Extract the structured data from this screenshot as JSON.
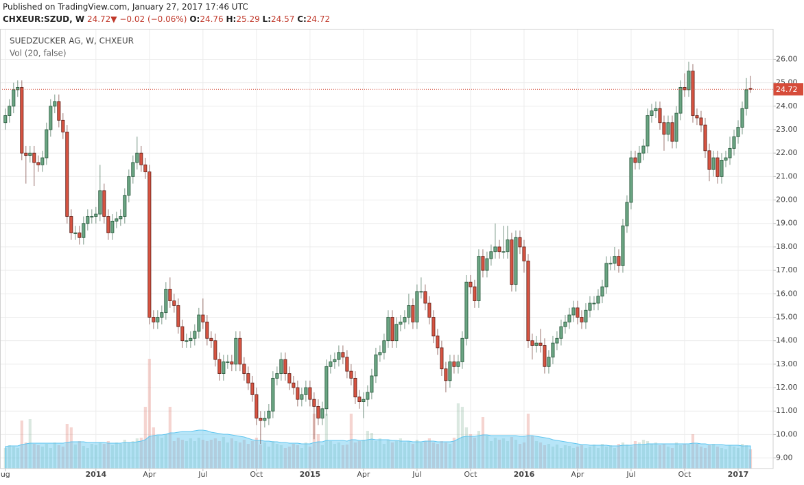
{
  "header": {
    "published": "Published on TradingView.com, January 27, 2017 17:46 UTC",
    "symbol": "CHXEUR:SZUD, W",
    "last": "24.72",
    "arrow": "▼",
    "change": "−0.02 (−0.06%)",
    "ohlc": [
      {
        "label": "O:",
        "value": "24.76"
      },
      {
        "label": "H:",
        "value": "25.29"
      },
      {
        "label": "L:",
        "value": "24.57"
      },
      {
        "label": "C:",
        "value": "24.72"
      }
    ]
  },
  "chart_data": {
    "type": "candlestick",
    "title": "SUEDZUCKER AG, W, CHXEUR",
    "volume_label": "Vol (20, false)",
    "up_color": "#6ba583",
    "up_border": "#225437",
    "down_color": "#d75442",
    "down_border": "#5b1a13",
    "volume_ma_color": "#5fc5ef",
    "grid": true,
    "x": [
      0,
      1,
      2,
      3,
      4,
      5,
      6,
      7,
      8,
      9,
      10,
      11,
      12,
      13,
      14,
      15,
      16,
      17,
      18,
      19,
      20,
      21,
      22,
      23,
      24,
      25,
      26,
      27,
      28,
      29,
      30,
      31,
      32,
      33,
      34,
      35,
      36,
      37,
      38,
      39,
      40,
      41,
      42,
      43,
      44,
      45,
      46,
      47,
      48,
      49,
      50,
      51,
      52,
      53,
      54,
      55,
      56,
      57,
      58,
      59,
      60,
      61,
      62,
      63,
      64,
      65,
      66,
      67,
      68,
      69,
      70,
      71,
      72,
      73,
      74,
      75,
      76,
      77,
      78,
      79,
      80,
      81,
      82,
      83,
      84,
      85,
      86,
      87,
      88,
      89,
      90,
      91,
      92,
      93,
      94,
      95,
      96,
      97,
      98,
      99,
      100,
      101,
      102,
      103,
      104,
      105,
      106,
      107,
      108,
      109,
      110,
      111,
      112,
      113,
      114,
      115,
      116,
      117,
      118,
      119,
      120,
      121,
      122,
      123,
      124,
      125,
      126,
      127,
      128,
      129,
      130,
      131,
      132,
      133,
      134,
      135,
      136,
      137,
      138,
      139,
      140,
      141,
      142,
      143,
      144,
      145,
      146,
      147,
      148,
      149,
      150,
      151,
      152,
      153,
      154,
      155,
      156,
      157,
      158,
      159,
      160,
      161,
      162,
      163,
      164,
      165,
      166,
      167,
      168,
      169,
      170,
      171,
      172,
      173,
      174,
      175,
      176,
      177,
      178,
      179,
      180,
      181
    ],
    "open": [
      23.3,
      23.6,
      24.0,
      24.7,
      24.8,
      22.0,
      21.9,
      22.0,
      21.6,
      21.5,
      21.8,
      23.0,
      24.0,
      24.2,
      23.4,
      22.9,
      19.3,
      18.6,
      18.6,
      18.4,
      19.0,
      19.3,
      19.3,
      19.4,
      20.4,
      19.3,
      18.6,
      19.1,
      19.2,
      19.3,
      20.2,
      21.0,
      21.6,
      22.0,
      21.5,
      21.2,
      15.0,
      14.8,
      15.0,
      15.2,
      16.2,
      15.7,
      15.5,
      14.6,
      14.0,
      14.0,
      14.1,
      14.4,
      15.1,
      14.8,
      14.1,
      14.0,
      13.2,
      12.6,
      13.1,
      13.1,
      13.0,
      14.1,
      13.0,
      12.6,
      12.2,
      11.7,
      10.7,
      10.6,
      10.7,
      11.0,
      12.4,
      12.6,
      13.2,
      12.6,
      12.2,
      12.0,
      11.5,
      11.7,
      12.0,
      11.5,
      11.2,
      10.7,
      11.1,
      12.9,
      13.1,
      13.2,
      13.5,
      13.3,
      12.7,
      12.4,
      11.6,
      11.4,
      11.5,
      11.8,
      12.5,
      13.4,
      13.5,
      14.0,
      15.0,
      14.0,
      14.7,
      14.8,
      15.0,
      15.5,
      14.8,
      16.1,
      16.1,
      15.6,
      15.0,
      14.2,
      13.7,
      12.8,
      12.3,
      13.1,
      12.9,
      13.1,
      14.1,
      16.5,
      16.3,
      15.7,
      17.6,
      17.0,
      17.5,
      17.8,
      18.0,
      17.8,
      17.8,
      18.3,
      16.4,
      18.4,
      18.0,
      17.4,
      14.0,
      13.8,
      13.9,
      13.8,
      12.9,
      13.3,
      13.9,
      14.1,
      14.6,
      14.8,
      15.1,
      15.4,
      15.0,
      14.8,
      15.3,
      15.6,
      15.6,
      15.9,
      16.3,
      17.3,
      17.3,
      17.6,
      17.2,
      18.9,
      19.9,
      21.8,
      21.6,
      22.0,
      22.3,
      23.6,
      23.8,
      23.9,
      23.3,
      22.8,
      23.3,
      22.5,
      23.7,
      24.8,
      24.7,
      25.5,
      23.6,
      23.5,
      23.2,
      22.1,
      21.3,
      21.8,
      21.0,
      21.7,
      21.8,
      22.2,
      22.7,
      23.1,
      23.9,
      24.76
    ],
    "high": [
      23.9,
      24.3,
      25.0,
      25.1,
      25.1,
      22.3,
      22.3,
      22.3,
      21.9,
      22.1,
      23.3,
      24.3,
      24.5,
      24.5,
      23.7,
      23.2,
      19.6,
      18.9,
      18.9,
      19.3,
      19.6,
      19.6,
      19.7,
      21.5,
      20.7,
      19.6,
      19.4,
      19.5,
      19.6,
      20.5,
      21.3,
      21.9,
      22.7,
      22.3,
      21.8,
      21.5,
      15.3,
      15.3,
      15.5,
      16.5,
      16.7,
      16.0,
      15.8,
      14.9,
      14.3,
      14.4,
      14.7,
      15.4,
      15.8,
      15.1,
      14.4,
      14.3,
      13.5,
      13.4,
      13.4,
      13.4,
      14.4,
      14.4,
      13.3,
      12.9,
      12.5,
      12.0,
      11.0,
      11.0,
      11.3,
      12.7,
      12.9,
      13.5,
      13.5,
      12.9,
      12.5,
      12.3,
      12.0,
      12.3,
      12.3,
      11.8,
      11.5,
      11.4,
      13.2,
      13.4,
      13.5,
      13.8,
      13.8,
      13.6,
      13.0,
      12.7,
      11.9,
      11.8,
      12.1,
      12.8,
      13.7,
      13.8,
      14.3,
      15.3,
      15.3,
      15.0,
      15.1,
      15.3,
      16.0,
      15.8,
      16.4,
      16.7,
      16.4,
      15.9,
      15.3,
      14.5,
      14.0,
      13.1,
      13.4,
      13.4,
      13.4,
      14.4,
      16.8,
      16.8,
      16.6,
      17.9,
      17.9,
      17.8,
      18.1,
      19.0,
      18.3,
      18.9,
      18.9,
      18.6,
      18.7,
      18.7,
      18.3,
      17.7,
      14.3,
      14.2,
      14.5,
      14.1,
      13.6,
      14.2,
      14.4,
      14.9,
      15.1,
      15.4,
      15.7,
      15.7,
      15.3,
      15.6,
      15.9,
      15.9,
      16.2,
      16.6,
      17.6,
      17.6,
      18.0,
      17.9,
      19.2,
      20.2,
      22.1,
      22.1,
      22.3,
      22.6,
      23.9,
      24.1,
      24.2,
      24.2,
      23.6,
      23.6,
      23.6,
      24.0,
      25.1,
      25.4,
      25.9,
      25.8,
      23.9,
      23.8,
      23.5,
      22.4,
      22.1,
      22.1,
      22.0,
      22.1,
      22.7,
      23.0,
      23.4,
      24.2,
      25.2,
      25.29
    ],
    "low": [
      23.0,
      23.3,
      23.7,
      24.4,
      21.7,
      20.7,
      21.6,
      20.6,
      21.2,
      21.2,
      21.5,
      22.7,
      23.7,
      23.1,
      22.6,
      19.0,
      18.3,
      18.3,
      18.1,
      18.1,
      18.7,
      19.0,
      19.0,
      19.1,
      19.0,
      18.3,
      18.3,
      18.8,
      18.9,
      19.0,
      19.9,
      20.7,
      21.3,
      21.2,
      20.9,
      14.7,
      14.5,
      14.5,
      14.7,
      14.9,
      15.4,
      15.2,
      14.3,
      13.7,
      13.7,
      13.7,
      13.8,
      14.1,
      14.5,
      13.8,
      13.7,
      12.9,
      12.3,
      12.3,
      12.8,
      12.7,
      12.7,
      12.7,
      12.3,
      11.9,
      11.4,
      10.4,
      9.6,
      10.3,
      10.4,
      10.7,
      12.1,
      12.3,
      12.3,
      11.9,
      11.7,
      11.2,
      11.2,
      11.4,
      11.2,
      9.8,
      10.4,
      10.4,
      10.8,
      12.6,
      12.8,
      12.9,
      13.0,
      12.4,
      12.1,
      11.3,
      11.1,
      10.7,
      11.2,
      11.5,
      12.2,
      13.1,
      13.2,
      13.7,
      13.7,
      13.7,
      14.4,
      14.5,
      14.7,
      14.5,
      14.5,
      15.8,
      15.3,
      14.7,
      13.9,
      13.4,
      12.5,
      11.8,
      12.0,
      12.6,
      12.6,
      12.8,
      13.8,
      16.0,
      15.4,
      15.4,
      16.7,
      16.7,
      17.2,
      17.5,
      17.5,
      17.5,
      17.5,
      16.1,
      16.1,
      17.7,
      16.9,
      13.7,
      13.2,
      13.5,
      13.5,
      12.6,
      12.6,
      13.0,
      13.6,
      13.8,
      14.3,
      14.5,
      14.8,
      14.7,
      14.5,
      14.5,
      15.0,
      15.3,
      15.3,
      15.6,
      16.0,
      17.0,
      17.0,
      16.9,
      16.9,
      18.6,
      19.6,
      21.3,
      21.3,
      21.7,
      22.0,
      23.3,
      23.5,
      23.0,
      22.1,
      22.5,
      22.2,
      22.2,
      23.4,
      24.4,
      24.4,
      23.3,
      23.2,
      22.9,
      21.8,
      20.8,
      21.0,
      20.7,
      20.7,
      21.4,
      21.5,
      21.9,
      22.4,
      22.8,
      23.6,
      24.57
    ],
    "close": [
      23.6,
      24.0,
      24.7,
      24.8,
      22.0,
      21.9,
      22.0,
      21.6,
      21.5,
      21.8,
      23.0,
      24.0,
      24.2,
      23.4,
      22.9,
      19.3,
      18.6,
      18.6,
      18.4,
      19.0,
      19.3,
      19.3,
      19.4,
      20.4,
      19.3,
      18.6,
      19.1,
      19.2,
      19.3,
      20.2,
      21.0,
      21.6,
      22.0,
      21.5,
      21.2,
      15.0,
      14.8,
      15.0,
      15.2,
      16.2,
      15.7,
      15.5,
      14.6,
      14.0,
      14.0,
      14.1,
      14.4,
      15.1,
      14.8,
      14.1,
      14.0,
      13.2,
      12.6,
      13.1,
      13.1,
      13.0,
      14.1,
      13.0,
      12.6,
      12.2,
      11.7,
      10.7,
      10.6,
      10.7,
      11.0,
      12.4,
      12.6,
      13.2,
      12.6,
      12.2,
      12.0,
      11.5,
      11.7,
      12.0,
      11.5,
      11.2,
      10.7,
      11.1,
      12.9,
      13.1,
      13.2,
      13.5,
      13.3,
      12.7,
      12.4,
      11.6,
      11.4,
      11.5,
      11.8,
      12.5,
      13.4,
      13.5,
      14.0,
      15.0,
      14.0,
      14.7,
      14.8,
      15.0,
      15.5,
      14.8,
      16.1,
      16.1,
      15.6,
      15.0,
      14.2,
      13.7,
      12.8,
      12.3,
      13.1,
      12.9,
      13.1,
      14.1,
      16.5,
      16.3,
      15.7,
      17.6,
      17.0,
      17.5,
      17.8,
      18.0,
      17.8,
      17.8,
      18.3,
      16.4,
      18.4,
      18.0,
      17.4,
      14.0,
      13.8,
      13.9,
      13.8,
      12.9,
      13.3,
      13.9,
      14.1,
      14.6,
      14.8,
      15.1,
      15.4,
      15.0,
      14.8,
      15.3,
      15.6,
      15.6,
      15.9,
      16.3,
      17.3,
      17.3,
      17.6,
      17.2,
      18.9,
      19.9,
      21.8,
      21.6,
      22.0,
      22.3,
      23.6,
      23.8,
      23.9,
      23.3,
      22.8,
      23.3,
      22.5,
      23.7,
      24.8,
      24.7,
      25.5,
      23.6,
      23.5,
      23.2,
      22.1,
      21.3,
      21.8,
      21.0,
      21.7,
      21.8,
      22.2,
      22.7,
      23.1,
      23.9,
      24.7,
      24.72
    ],
    "volume": [
      30,
      34,
      32,
      30,
      70,
      38,
      72,
      36,
      34,
      32,
      36,
      30,
      38,
      34,
      32,
      65,
      60,
      35,
      40,
      33,
      30,
      36,
      34,
      38,
      36,
      40,
      34,
      38,
      36,
      42,
      38,
      40,
      44,
      45,
      90,
      160,
      60,
      48,
      45,
      50,
      90,
      40,
      45,
      42,
      40,
      44,
      40,
      45,
      42,
      40,
      42,
      44,
      40,
      46,
      38,
      44,
      40,
      38,
      42,
      36,
      40,
      45,
      35,
      38,
      32,
      40,
      36,
      34,
      30,
      32,
      36,
      34,
      30,
      38,
      32,
      80,
      50,
      34,
      80,
      40,
      36,
      38,
      34,
      35,
      80,
      38,
      40,
      42,
      55,
      52,
      40,
      44,
      36,
      42,
      38,
      40,
      44,
      38,
      40,
      36,
      42,
      38,
      40,
      44,
      38,
      36,
      40,
      38,
      36,
      45,
      95,
      90,
      60,
      50,
      45,
      55,
      75,
      48,
      40,
      45,
      42,
      44,
      40,
      46,
      42,
      36,
      38,
      80,
      48,
      40,
      38,
      34,
      36,
      32,
      35,
      30,
      34,
      33,
      30,
      32,
      34,
      30,
      32,
      35,
      30,
      36,
      32,
      34,
      30,
      36,
      38,
      35,
      32,
      40,
      38,
      42,
      40,
      36,
      38,
      34,
      36,
      32,
      30,
      38,
      34,
      36,
      35,
      50,
      36,
      32,
      30,
      34,
      36,
      32,
      30,
      28,
      34,
      32,
      30,
      36,
      34,
      28
    ],
    "volume_ma": [
      32,
      33,
      33,
      33,
      35,
      36,
      37,
      37,
      37,
      37,
      37,
      37,
      37,
      37,
      37,
      38,
      39,
      39,
      39,
      39,
      38,
      38,
      38,
      38,
      38,
      37,
      37,
      37,
      37,
      38,
      38,
      38,
      39,
      40,
      42,
      47,
      48,
      49,
      49,
      50,
      52,
      52,
      53,
      54,
      54,
      54,
      55,
      56,
      56,
      55,
      53,
      52,
      51,
      50,
      50,
      49,
      48,
      47,
      46,
      44,
      42,
      41,
      41,
      40,
      40,
      39,
      39,
      38,
      38,
      37,
      37,
      37,
      36,
      36,
      36,
      38,
      39,
      39,
      41,
      41,
      41,
      41,
      41,
      40,
      42,
      42,
      41,
      41,
      42,
      43,
      42,
      42,
      42,
      42,
      41,
      41,
      40,
      40,
      40,
      39,
      39,
      39,
      40,
      40,
      40,
      39,
      39,
      39,
      39,
      40,
      43,
      46,
      47,
      47,
      47,
      48,
      49,
      49,
      48,
      48,
      48,
      48,
      48,
      48,
      48,
      47,
      47,
      48,
      48,
      47,
      46,
      45,
      44,
      42,
      41,
      40,
      39,
      38,
      37,
      36,
      35,
      35,
      34,
      34,
      34,
      34,
      34,
      33,
      33,
      33,
      34,
      34,
      34,
      35,
      35,
      35,
      36,
      36,
      36,
      36,
      36,
      36,
      36,
      36,
      36,
      36,
      36,
      37,
      37,
      36,
      36,
      35,
      35,
      35,
      35,
      34,
      34,
      34,
      34,
      33,
      33,
      33
    ],
    "volume_ylim": [
      0,
      200
    ],
    "xlim": [
      -1.3,
      186.5
    ],
    "xticks": [
      {
        "value": 0,
        "label": "ug"
      },
      {
        "value": 22,
        "label": "2014"
      },
      {
        "value": 35,
        "label": "Apr"
      },
      {
        "value": 48,
        "label": "Jul"
      },
      {
        "value": 61,
        "label": "Oct"
      },
      {
        "value": 74,
        "label": "2015"
      },
      {
        "value": 87,
        "label": "Apr"
      },
      {
        "value": 100,
        "label": "Jul"
      },
      {
        "value": 113,
        "label": "Oct"
      },
      {
        "value": 126,
        "label": "2016"
      },
      {
        "value": 139,
        "label": "Apr"
      },
      {
        "value": 152,
        "label": "Jul"
      },
      {
        "value": 165,
        "label": "Oct"
      },
      {
        "value": 178,
        "label": "2017"
      }
    ],
    "ylim": [
      8.55,
      27.3
    ],
    "yticks": [
      {
        "value": 9,
        "label": "9.00"
      },
      {
        "value": 10,
        "label": "10.00"
      },
      {
        "value": 11,
        "label": "11.00"
      },
      {
        "value": 12,
        "label": "12.00"
      },
      {
        "value": 13,
        "label": "13.00"
      },
      {
        "value": 14,
        "label": "14.00"
      },
      {
        "value": 15,
        "label": "15.00"
      },
      {
        "value": 16,
        "label": "16.00"
      },
      {
        "value": 17,
        "label": "17.00"
      },
      {
        "value": 18,
        "label": "18.00"
      },
      {
        "value": 19,
        "label": "19.00"
      },
      {
        "value": 20,
        "label": "20.00"
      },
      {
        "value": 21,
        "label": "21.00"
      },
      {
        "value": 22,
        "label": "22.00"
      },
      {
        "value": 23,
        "label": "23.00"
      },
      {
        "value": 24,
        "label": "24.00"
      },
      {
        "value": 25,
        "label": "25.00"
      },
      {
        "value": 26,
        "label": "26.00"
      }
    ],
    "last_price": {
      "value": 24.72,
      "label": "24.72",
      "color": "#d64c3a"
    }
  }
}
